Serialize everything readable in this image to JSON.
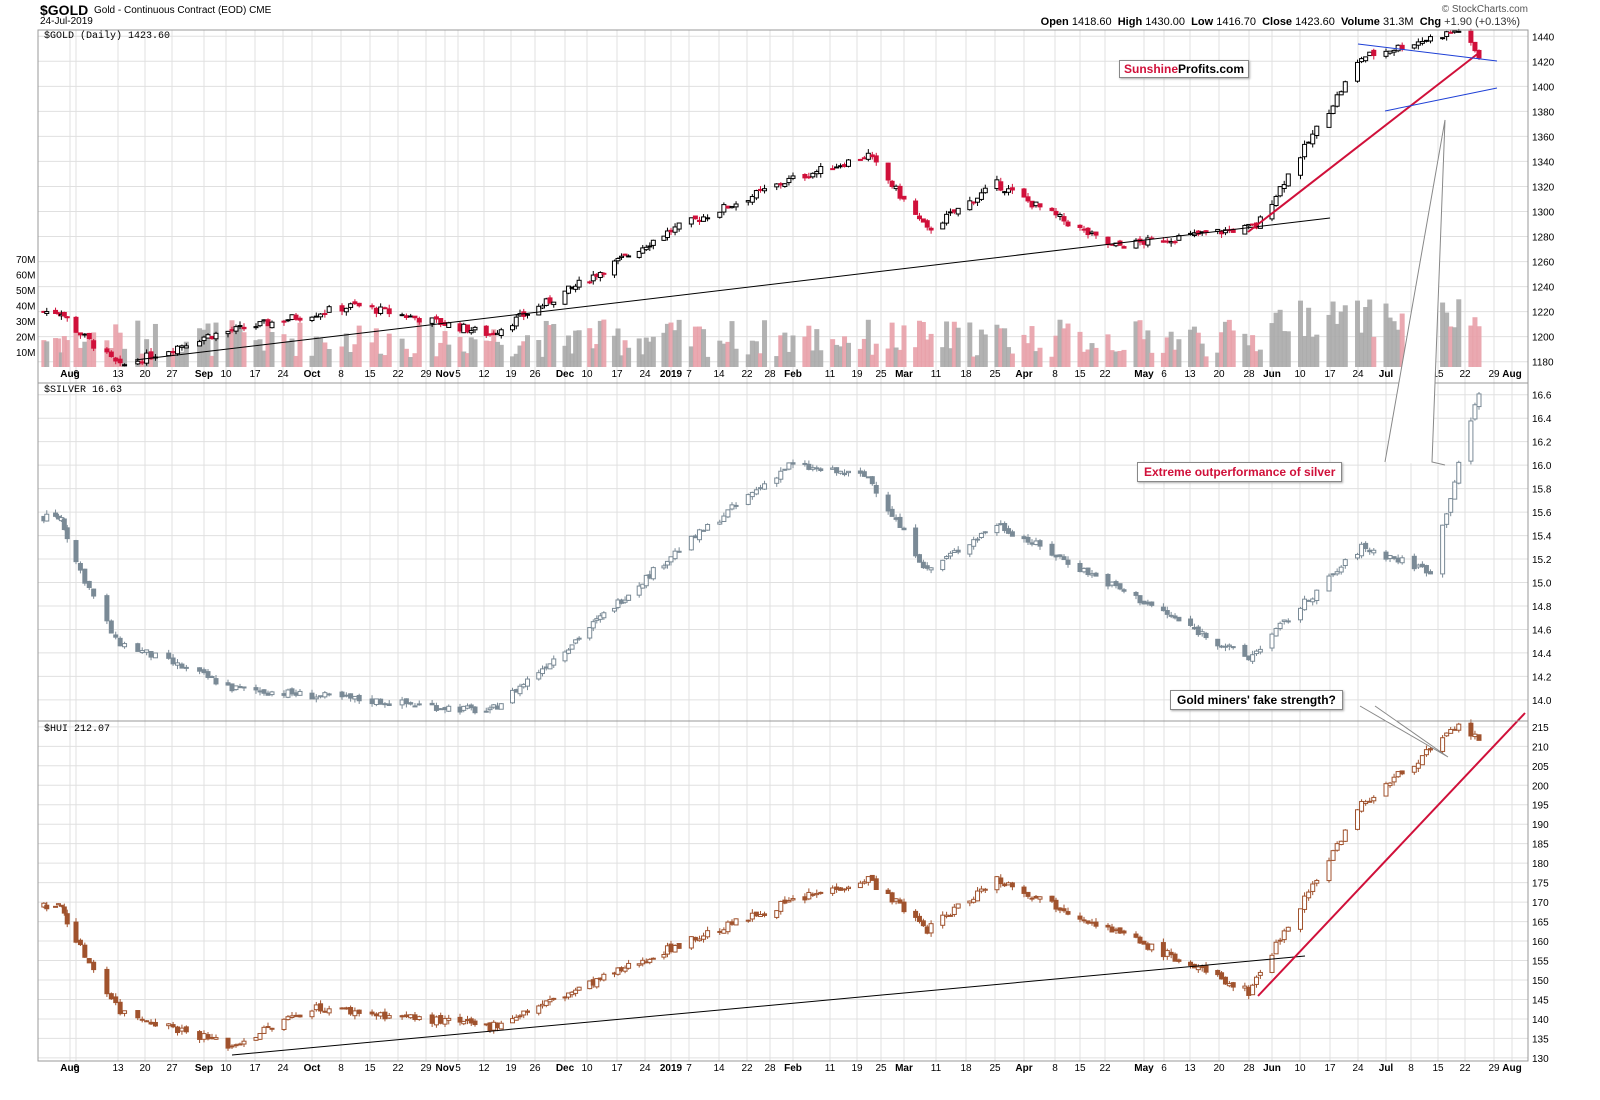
{
  "header": {
    "symbol": "$GOLD",
    "description": "Gold - Continuous Contract (EOD)",
    "exchange": "CME",
    "date": "24-Jul-2019",
    "open_label": "Open",
    "open": "1418.60",
    "high_label": "High",
    "high": "1430.00",
    "low_label": "Low",
    "low": "1416.70",
    "close_label": "Close",
    "close": "1423.60",
    "volume_label": "Volume",
    "volume": "31.3M",
    "chg_label": "Chg",
    "chg": "+1.90 (+0.13%)",
    "source": "© StockCharts.com"
  },
  "brand": {
    "part1": "Sunshine",
    "part2": "Profits.com"
  },
  "annotations": {
    "silver_note": "Extreme outperformance of silver",
    "hui_note": "Gold miners' fake strength?"
  },
  "x_axis": {
    "labels": [
      {
        "text": "Aug",
        "bold": true
      },
      {
        "text": "6",
        "bold": false
      },
      {
        "text": "13",
        "bold": false
      },
      {
        "text": "20",
        "bold": false
      },
      {
        "text": "27",
        "bold": false
      },
      {
        "text": "Sep",
        "bold": true
      },
      {
        "text": "10",
        "bold": false
      },
      {
        "text": "17",
        "bold": false
      },
      {
        "text": "24",
        "bold": false
      },
      {
        "text": "Oct",
        "bold": true
      },
      {
        "text": "8",
        "bold": false
      },
      {
        "text": "15",
        "bold": false
      },
      {
        "text": "22",
        "bold": false
      },
      {
        "text": "29",
        "bold": false
      },
      {
        "text": "Nov",
        "bold": true
      },
      {
        "text": "5",
        "bold": false
      },
      {
        "text": "12",
        "bold": false
      },
      {
        "text": "19",
        "bold": false
      },
      {
        "text": "26",
        "bold": false
      },
      {
        "text": "Dec",
        "bold": true
      },
      {
        "text": "10",
        "bold": false
      },
      {
        "text": "17",
        "bold": false
      },
      {
        "text": "24",
        "bold": false
      },
      {
        "text": "2019",
        "bold": true
      },
      {
        "text": "7",
        "bold": false
      },
      {
        "text": "14",
        "bold": false
      },
      {
        "text": "22",
        "bold": false
      },
      {
        "text": "28",
        "bold": false
      },
      {
        "text": "Feb",
        "bold": true
      },
      {
        "text": "11",
        "bold": false
      },
      {
        "text": "19",
        "bold": false
      },
      {
        "text": "25",
        "bold": false
      },
      {
        "text": "Mar",
        "bold": true
      },
      {
        "text": "11",
        "bold": false
      },
      {
        "text": "18",
        "bold": false
      },
      {
        "text": "25",
        "bold": false
      },
      {
        "text": "Apr",
        "bold": true
      },
      {
        "text": "8",
        "bold": false
      },
      {
        "text": "15",
        "bold": false
      },
      {
        "text": "22",
        "bold": false
      },
      {
        "text": "May",
        "bold": true
      },
      {
        "text": "6",
        "bold": false
      },
      {
        "text": "13",
        "bold": false
      },
      {
        "text": "20",
        "bold": false
      },
      {
        "text": "28",
        "bold": false
      },
      {
        "text": "Jun",
        "bold": true
      },
      {
        "text": "10",
        "bold": false
      },
      {
        "text": "17",
        "bold": false
      },
      {
        "text": "24",
        "bold": false
      },
      {
        "text": "Jul",
        "bold": true
      },
      {
        "text": "8",
        "bold": false
      },
      {
        "text": "15",
        "bold": false
      },
      {
        "text": "22",
        "bold": false
      },
      {
        "text": "29",
        "bold": false
      },
      {
        "text": "Aug",
        "bold": true
      }
    ]
  },
  "colors": {
    "up_gold": "#000000",
    "down_gold": "#d0103a",
    "silver": "#7a8a96",
    "hui": "#a0522d",
    "trend_red": "#d0103a",
    "trend_blue": "#1d3fd6",
    "trend_black": "#000000",
    "vol_up": "#aaaaaa",
    "vol_down": "#e8a0a8"
  },
  "chart_data": [
    {
      "type": "candlestick",
      "title": "$GOLD (Daily) 1423.60",
      "yticks": [
        1180,
        1200,
        1220,
        1240,
        1260,
        1280,
        1300,
        1320,
        1340,
        1360,
        1380,
        1400,
        1420,
        1440
      ],
      "ylim": [
        1160,
        1450
      ],
      "volume_ticks": [
        "10M",
        "20M",
        "30M",
        "40M",
        "50M",
        "60M",
        "70M"
      ],
      "key_values": [
        {
          "date": "Aug 2018",
          "close": 1220
        },
        {
          "date": "Aug 16 2018",
          "close": 1176
        },
        {
          "date": "Sep 2018",
          "close": 1200
        },
        {
          "date": "Oct 11 2018",
          "close": 1225
        },
        {
          "date": "Nov 13 2018",
          "close": 1202
        },
        {
          "date": "Dec 31 2018",
          "close": 1282
        },
        {
          "date": "Jan 31 2019",
          "close": 1325
        },
        {
          "date": "Feb 20 2019",
          "close": 1345
        },
        {
          "date": "Mar 7 2019",
          "close": 1285
        },
        {
          "date": "Mar 25 2019",
          "close": 1322
        },
        {
          "date": "Apr 23 2019",
          "close": 1272
        },
        {
          "date": "May 30 2019",
          "close": 1288
        },
        {
          "date": "Jun 25 2019",
          "close": 1423
        },
        {
          "date": "Jul 19 2019",
          "close": 1445
        },
        {
          "date": "Jul 24 2019",
          "close": 1423.6
        }
      ]
    },
    {
      "type": "candlestick",
      "title": "$SILVER 16.63",
      "yticks": [
        14.0,
        14.2,
        14.4,
        14.6,
        14.8,
        15.0,
        15.2,
        15.4,
        15.6,
        15.8,
        16.0,
        16.2,
        16.4,
        16.6
      ],
      "ylim": [
        13.8,
        16.7
      ],
      "key_values": [
        {
          "date": "Aug 2018",
          "close": 15.55
        },
        {
          "date": "Aug 15 2018",
          "close": 14.5
        },
        {
          "date": "Sep 11 2018",
          "close": 14.1
        },
        {
          "date": "Nov 13 2018",
          "close": 13.9
        },
        {
          "date": "Jan 31 2019",
          "close": 16.0
        },
        {
          "date": "Feb 20 2019",
          "close": 15.9
        },
        {
          "date": "Mar 7 2019",
          "close": 15.1
        },
        {
          "date": "Mar 25 2019",
          "close": 15.5
        },
        {
          "date": "May 28 2019",
          "close": 14.35
        },
        {
          "date": "Jun 25 2019",
          "close": 15.3
        },
        {
          "date": "Jul 12 2019",
          "close": 15.1
        },
        {
          "date": "Jul 24 2019",
          "close": 16.63
        }
      ]
    },
    {
      "type": "candlestick",
      "title": "$HUI 212.07",
      "yticks": [
        130,
        135,
        140,
        145,
        150,
        155,
        160,
        165,
        170,
        175,
        180,
        185,
        190,
        195,
        200,
        205,
        210,
        215
      ],
      "ylim": [
        129,
        217
      ],
      "key_values": [
        {
          "date": "Aug 2018",
          "close": 169
        },
        {
          "date": "Aug 16 2018",
          "close": 142
        },
        {
          "date": "Sep 11 2018",
          "close": 133
        },
        {
          "date": "Oct 2018",
          "close": 143
        },
        {
          "date": "Nov 13 2018",
          "close": 138
        },
        {
          "date": "Jan 31 2019",
          "close": 170
        },
        {
          "date": "Feb 20 2019",
          "close": 176
        },
        {
          "date": "Mar 7 2019",
          "close": 163
        },
        {
          "date": "Mar 25 2019",
          "close": 176
        },
        {
          "date": "May 28 2019",
          "close": 147
        },
        {
          "date": "Jun 25 2019",
          "close": 195
        },
        {
          "date": "Jul 19 2019",
          "close": 215
        },
        {
          "date": "Jul 24 2019",
          "close": 212.07
        }
      ]
    }
  ]
}
